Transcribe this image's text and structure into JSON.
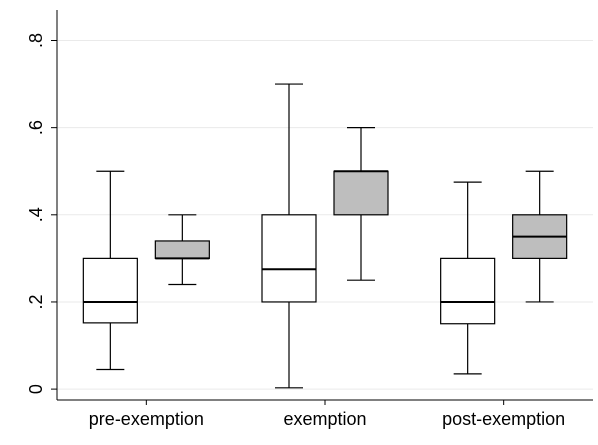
{
  "chart_data": {
    "type": "box",
    "categories": [
      "pre-exemption",
      "exemption",
      "post-exemption"
    ],
    "series": [
      {
        "color": "#ffffff",
        "min": [
          0.045,
          0.003,
          0.035
        ],
        "q1": [
          0.152,
          0.2,
          0.15
        ],
        "median": [
          0.2,
          0.275,
          0.2
        ],
        "q3": [
          0.3,
          0.4,
          0.3
        ],
        "max": [
          0.5,
          0.7,
          0.475
        ]
      },
      {
        "color": "#bebebe",
        "min": [
          0.24,
          0.25,
          0.2
        ],
        "q1": [
          0.3,
          0.4,
          0.3
        ],
        "median": [
          0.3,
          0.5,
          0.35
        ],
        "q3": [
          0.34,
          0.5,
          0.4
        ],
        "max": [
          0.4,
          0.6,
          0.5
        ]
      }
    ],
    "ylim": [
      -0.025,
      0.87
    ],
    "yticks": [
      0,
      {
        "value": 0.2,
        "label": ".2"
      },
      {
        "value": 0.4,
        "label": ".4"
      },
      {
        "value": 0.6,
        "label": ".6"
      },
      {
        "value": 0.8,
        "label": ".8"
      }
    ],
    "grid": true
  }
}
